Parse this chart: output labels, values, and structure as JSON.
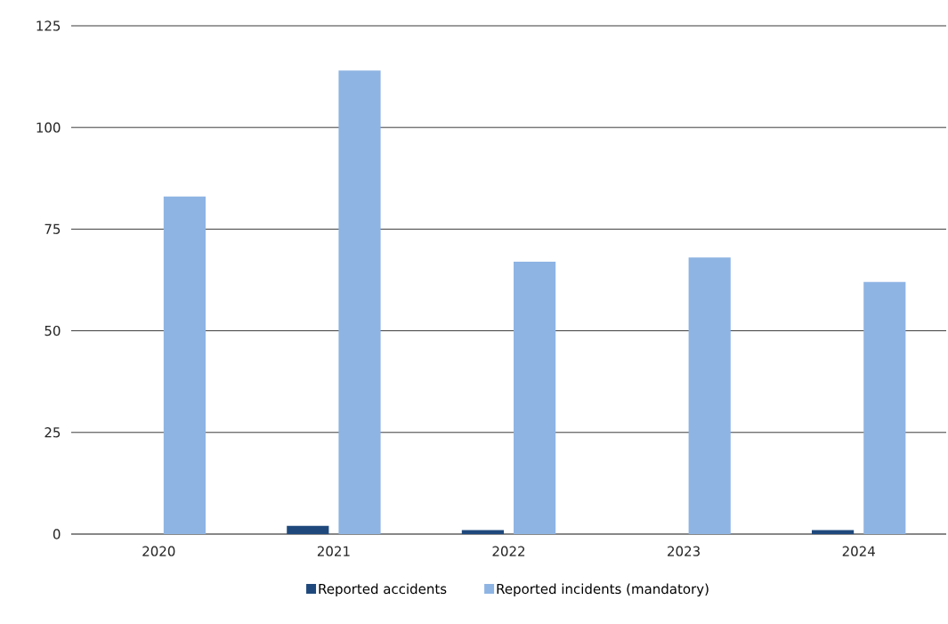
{
  "chart_data": {
    "type": "bar",
    "categories": [
      "2020",
      "2021",
      "2022",
      "2023",
      "2024"
    ],
    "series": [
      {
        "name": "Reported accidents",
        "color": "#1f497d",
        "values": [
          0,
          2,
          1,
          0,
          1
        ]
      },
      {
        "name": "Reported incidents (mandatory)",
        "color": "#8eb4e3",
        "values": [
          83,
          114,
          67,
          68,
          62
        ]
      }
    ],
    "ylim": [
      0,
      125
    ],
    "yticks": [
      0,
      25,
      50,
      75,
      100,
      125
    ],
    "grid": "y",
    "legend": "bottom"
  }
}
